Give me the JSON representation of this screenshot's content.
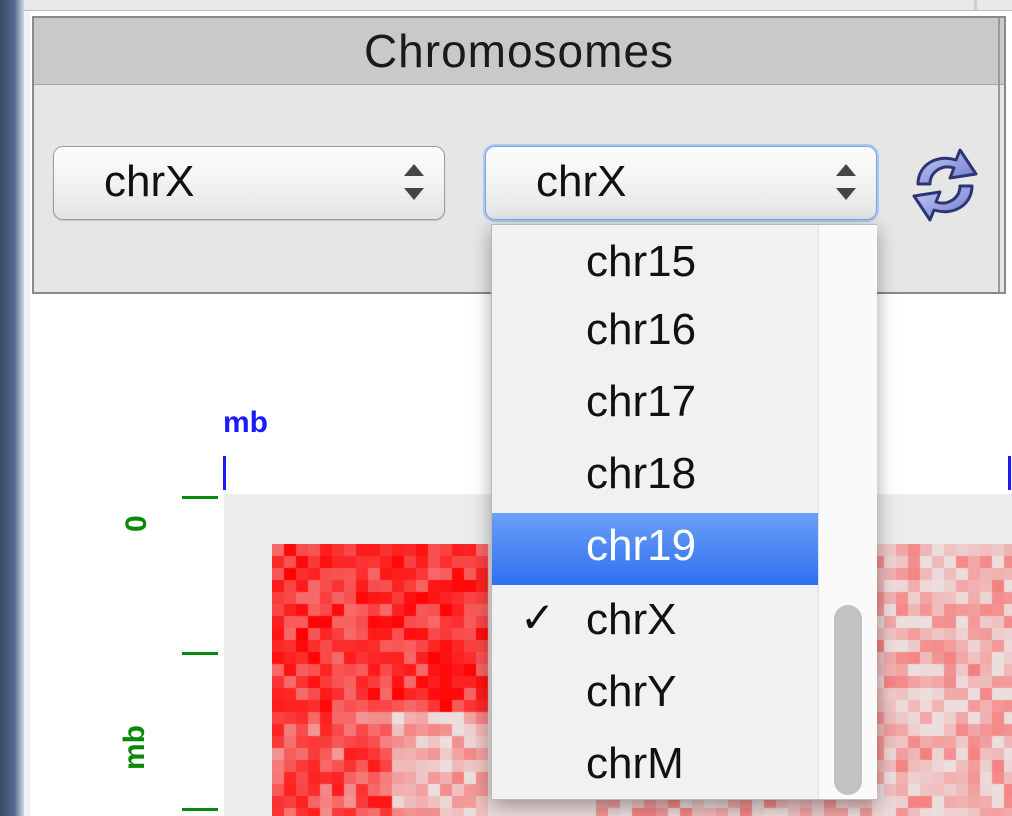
{
  "panel": {
    "title": "Chromosomes"
  },
  "selectors": {
    "left_value": "chrX",
    "right_value": "chrX"
  },
  "dropdown": {
    "items": [
      {
        "label": "chr15",
        "checked": false,
        "highlighted": false
      },
      {
        "label": "chr16",
        "checked": false,
        "highlighted": false
      },
      {
        "label": "chr17",
        "checked": false,
        "highlighted": false
      },
      {
        "label": "chr18",
        "checked": false,
        "highlighted": false
      },
      {
        "label": "chr19",
        "checked": false,
        "highlighted": true
      },
      {
        "label": "chrX",
        "checked": true,
        "highlighted": false
      },
      {
        "label": "chrY",
        "checked": false,
        "highlighted": false
      },
      {
        "label": "chrM",
        "checked": false,
        "highlighted": false
      }
    ],
    "check_mark": "✓",
    "highlight_color": "#3d7bf2"
  },
  "heatmap": {
    "top_axis_label": "mb",
    "left_axis_label": "mb",
    "left_axis_zero": "0",
    "color": "#ff0000",
    "background": "#ececec"
  },
  "icons": {
    "refresh": "refresh-icon"
  }
}
